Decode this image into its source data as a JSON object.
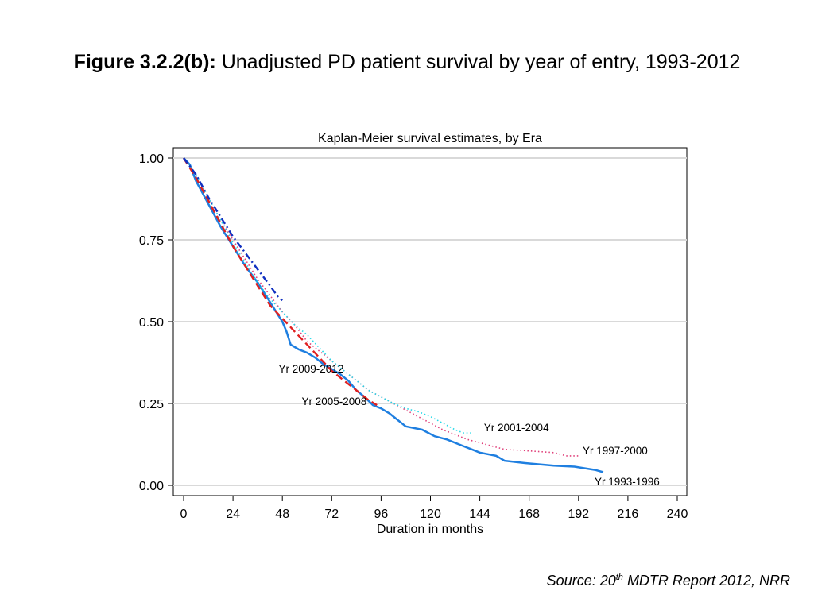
{
  "title": {
    "prefix": "Figure 3.2.2(b):",
    "text": "Unadjusted PD patient survival by year of entry, 1993-2012"
  },
  "source": {
    "prefix": "Source: 20",
    "superscript": "th",
    "suffix": "MDTR Report 2012, NRR"
  },
  "chart_data": {
    "type": "line",
    "title": "Kaplan-Meier survival estimates, by Era",
    "xlabel": "Duration in months",
    "ylabel": "",
    "xlim": [
      0,
      240
    ],
    "ylim": [
      0,
      1
    ],
    "xticks": [
      "0",
      "24",
      "48",
      "72",
      "96",
      "120",
      "144",
      "168",
      "192",
      "216",
      "240"
    ],
    "yticks": [
      "0.00",
      "0.25",
      "0.50",
      "0.75",
      "1.00"
    ],
    "grid": "horizontal",
    "legend": "none (direct labels)",
    "series": [
      {
        "name": "Yr 1993-1996",
        "color": "#1f7fe0",
        "style": "solid",
        "points": [
          [
            0,
            1.0
          ],
          [
            3,
            0.98
          ],
          [
            6,
            0.93
          ],
          [
            12,
            0.86
          ],
          [
            18,
            0.79
          ],
          [
            24,
            0.73
          ],
          [
            30,
            0.67
          ],
          [
            36,
            0.62
          ],
          [
            42,
            0.56
          ],
          [
            46,
            0.52
          ],
          [
            48,
            0.5
          ],
          [
            50,
            0.47
          ],
          [
            52,
            0.43
          ],
          [
            56,
            0.415
          ],
          [
            60,
            0.405
          ],
          [
            64,
            0.39
          ],
          [
            68,
            0.37
          ],
          [
            72,
            0.355
          ],
          [
            76,
            0.34
          ],
          [
            80,
            0.32
          ],
          [
            84,
            0.29
          ],
          [
            88,
            0.27
          ],
          [
            92,
            0.245
          ],
          [
            96,
            0.235
          ],
          [
            100,
            0.22
          ],
          [
            104,
            0.2
          ],
          [
            108,
            0.18
          ],
          [
            116,
            0.17
          ],
          [
            122,
            0.15
          ],
          [
            128,
            0.14
          ],
          [
            136,
            0.12
          ],
          [
            140,
            0.11
          ],
          [
            144,
            0.1
          ],
          [
            152,
            0.09
          ],
          [
            156,
            0.075
          ],
          [
            166,
            0.068
          ],
          [
            180,
            0.06
          ],
          [
            190,
            0.057
          ],
          [
            200,
            0.047
          ],
          [
            204,
            0.04
          ]
        ]
      },
      {
        "name": "Yr 1997-2000",
        "color": "#e0407a",
        "style": "dotted",
        "points": [
          [
            0,
            1.0
          ],
          [
            6,
            0.95
          ],
          [
            12,
            0.88
          ],
          [
            18,
            0.81
          ],
          [
            24,
            0.75
          ],
          [
            30,
            0.69
          ],
          [
            36,
            0.63
          ],
          [
            42,
            0.58
          ],
          [
            48,
            0.53
          ],
          [
            54,
            0.49
          ],
          [
            60,
            0.44
          ],
          [
            66,
            0.41
          ],
          [
            72,
            0.38
          ],
          [
            78,
            0.35
          ],
          [
            84,
            0.32
          ],
          [
            90,
            0.29
          ],
          [
            96,
            0.27
          ],
          [
            102,
            0.25
          ],
          [
            108,
            0.23
          ],
          [
            114,
            0.21
          ],
          [
            120,
            0.19
          ],
          [
            126,
            0.17
          ],
          [
            132,
            0.155
          ],
          [
            138,
            0.14
          ],
          [
            144,
            0.13
          ],
          [
            150,
            0.12
          ],
          [
            156,
            0.11
          ],
          [
            168,
            0.105
          ],
          [
            180,
            0.1
          ],
          [
            186,
            0.09
          ],
          [
            192,
            0.09
          ]
        ]
      },
      {
        "name": "Yr 2001-2004",
        "color": "#22d8e8",
        "style": "dotted",
        "points": [
          [
            0,
            1.0
          ],
          [
            6,
            0.95
          ],
          [
            12,
            0.88
          ],
          [
            18,
            0.81
          ],
          [
            24,
            0.74
          ],
          [
            30,
            0.68
          ],
          [
            36,
            0.62
          ],
          [
            42,
            0.57
          ],
          [
            48,
            0.53
          ],
          [
            54,
            0.49
          ],
          [
            60,
            0.46
          ],
          [
            66,
            0.42
          ],
          [
            72,
            0.38
          ],
          [
            78,
            0.35
          ],
          [
            84,
            0.32
          ],
          [
            90,
            0.29
          ],
          [
            96,
            0.27
          ],
          [
            102,
            0.25
          ],
          [
            108,
            0.235
          ],
          [
            114,
            0.225
          ],
          [
            120,
            0.21
          ],
          [
            126,
            0.19
          ],
          [
            132,
            0.17
          ],
          [
            136,
            0.16
          ],
          [
            140,
            0.16
          ]
        ]
      },
      {
        "name": "Yr 2005-2008",
        "color": "#e02020",
        "style": "dashed",
        "points": [
          [
            0,
            1.0
          ],
          [
            6,
            0.94
          ],
          [
            12,
            0.87
          ],
          [
            18,
            0.8
          ],
          [
            24,
            0.73
          ],
          [
            30,
            0.67
          ],
          [
            36,
            0.61
          ],
          [
            42,
            0.55
          ],
          [
            48,
            0.51
          ],
          [
            54,
            0.47
          ],
          [
            60,
            0.43
          ],
          [
            66,
            0.39
          ],
          [
            72,
            0.35
          ],
          [
            78,
            0.32
          ],
          [
            84,
            0.29
          ],
          [
            90,
            0.26
          ],
          [
            94,
            0.245
          ]
        ]
      },
      {
        "name": "Yr 2009-2012",
        "color": "#1030c0",
        "style": "dashdot",
        "points": [
          [
            0,
            1.0
          ],
          [
            6,
            0.95
          ],
          [
            12,
            0.88
          ],
          [
            18,
            0.82
          ],
          [
            24,
            0.76
          ],
          [
            30,
            0.71
          ],
          [
            36,
            0.66
          ],
          [
            42,
            0.61
          ],
          [
            46,
            0.575
          ],
          [
            48,
            0.565
          ]
        ]
      }
    ]
  }
}
